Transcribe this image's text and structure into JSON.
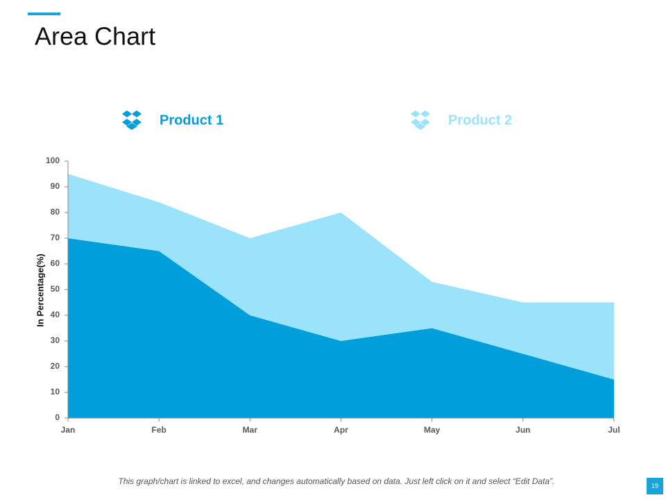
{
  "chart_data": {
    "type": "area",
    "stacked": true,
    "title": "Area Chart",
    "y_label": "In Percentage(%)",
    "categories": [
      "Jan",
      "Feb",
      "Mar",
      "Apr",
      "May",
      "Jun",
      "Jul"
    ],
    "series": [
      {
        "name": "Product 1",
        "color": "#009fdb",
        "values": [
          70,
          65,
          40,
          30,
          35,
          25,
          15
        ]
      },
      {
        "name": "Product 2",
        "color": "#9be3fb",
        "values": [
          25,
          19,
          30,
          50,
          18,
          20,
          30
        ]
      }
    ],
    "ylim": [
      0,
      100
    ],
    "yticks": [
      0,
      10,
      20,
      30,
      40,
      50,
      60,
      70,
      80,
      90,
      100
    ],
    "footer": "This graph/chart is linked to excel, and changes automatically based on data. Just left click on it and select “Edit Data”.",
    "page_number": "19"
  }
}
